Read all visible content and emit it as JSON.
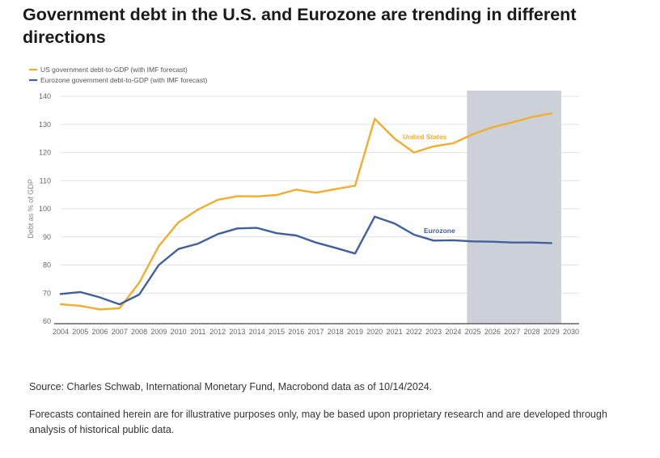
{
  "title": "Government debt in the U.S. and Eurozone are trending in different directions",
  "source": "Source: Charles Schwab, International Monetary Fund, Macrobond data as of 10/14/2024.",
  "note": "Forecasts contained herein are for illustrative purposes only, may be based upon proprietary research and are developed through analysis of historical public data.",
  "chart_data": {
    "type": "line",
    "x": [
      2004,
      2005,
      2006,
      2007,
      2008,
      2009,
      2010,
      2011,
      2012,
      2013,
      2014,
      2015,
      2016,
      2017,
      2018,
      2019,
      2020,
      2021,
      2022,
      2023,
      2024,
      2025,
      2026,
      2027,
      2028,
      2029
    ],
    "x_ticks": [
      "2004",
      "2005",
      "2006",
      "2007",
      "2008",
      "2009",
      "2010",
      "2011",
      "2012",
      "2013",
      "2014",
      "2015",
      "2016",
      "2017",
      "2018",
      "2019",
      "2020",
      "2021",
      "2022",
      "2023",
      "2024",
      "2025",
      "2026",
      "2027",
      "2028",
      "2029",
      "2030"
    ],
    "xlim": [
      2004,
      2030
    ],
    "ylim": [
      60,
      140
    ],
    "y_ticks": [
      60,
      70,
      80,
      90,
      100,
      110,
      120,
      130,
      140
    ],
    "ylabel": "Debt as % of GDP",
    "grid": true,
    "legend_position": "top-left",
    "forecast_shading": [
      2024.7,
      2029.5
    ],
    "series": [
      {
        "name": "US government debt-to-GDP (with IMF forecast)",
        "label": "United States",
        "color": "#f2ad2e",
        "values": [
          66,
          65.5,
          64.2,
          64.6,
          73.7,
          86.7,
          95.2,
          99.7,
          103.2,
          104.5,
          104.4,
          104.9,
          106.8,
          105.7,
          107,
          108.2,
          132,
          125,
          120,
          122.2,
          123.3,
          126.5,
          129,
          130.7,
          132.6,
          133.9
        ]
      },
      {
        "name": "Eurozone government debt-to-GDP (with IMF forecast)",
        "label": "Eurozone",
        "color": "#3f5f9e",
        "values": [
          69.7,
          70.4,
          68.5,
          66,
          69.5,
          80,
          85.7,
          87.6,
          91,
          93,
          93.2,
          91.3,
          90.5,
          88,
          86.1,
          84.1,
          97.2,
          94.8,
          90.8,
          88.7,
          88.8,
          88.4,
          88.3,
          88,
          88,
          87.8
        ]
      }
    ]
  }
}
